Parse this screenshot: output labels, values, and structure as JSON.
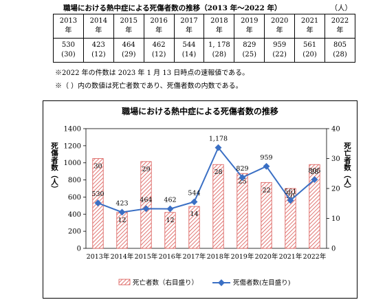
{
  "table": {
    "title": "職場における熱中症による死傷者数の推移（2013 年〜2022 年）",
    "unit": "（人）",
    "years": [
      {
        "y": "2013",
        "s": "年"
      },
      {
        "y": "2014",
        "s": "年"
      },
      {
        "y": "2015",
        "s": "年"
      },
      {
        "y": "2016",
        "s": "年"
      },
      {
        "y": "2017",
        "s": "年"
      },
      {
        "y": "2018",
        "s": "年"
      },
      {
        "y": "2019",
        "s": "年"
      },
      {
        "y": "2020",
        "s": "年"
      },
      {
        "y": "2021",
        "s": "年"
      },
      {
        "y": "2022",
        "s": "年"
      }
    ],
    "values": [
      {
        "casualties": "530",
        "deaths": "(30)"
      },
      {
        "casualties": "423",
        "deaths": "(12)"
      },
      {
        "casualties": "464",
        "deaths": "(29)"
      },
      {
        "casualties": "462",
        "deaths": "(12)"
      },
      {
        "casualties": "544",
        "deaths": "(14)"
      },
      {
        "casualties": "1, 178",
        "deaths": "(28)"
      },
      {
        "casualties": "829",
        "deaths": "(25)"
      },
      {
        "casualties": "959",
        "deaths": "(22)"
      },
      {
        "casualties": "561",
        "deaths": "(20)"
      },
      {
        "casualties": "805",
        "deaths": "(28)"
      }
    ]
  },
  "notes": [
    "※2022 年の件数は 2023 年 1 月 13 日時点の速報値である。",
    "※（ ）内の数値は死亡者数であり、死傷者数の内数である。"
  ],
  "chart_data": {
    "type": "bar",
    "title": "職場における熱中症による死傷者数の推移",
    "categories": [
      "2013年",
      "2014年",
      "2015年",
      "2016年",
      "2017年",
      "2018年",
      "2019年",
      "2020年",
      "2021年",
      "2022年"
    ],
    "series": [
      {
        "name": "死亡者数（右目盛り）",
        "type": "bar",
        "axis": "right",
        "values": [
          30,
          12,
          29,
          12,
          14,
          28,
          25,
          22,
          20,
          28
        ],
        "labels": [
          "30",
          "12",
          "29",
          "12",
          "14",
          "28",
          "25",
          "22",
          "20",
          "28"
        ],
        "color": "#d9534f"
      },
      {
        "name": "死傷者数(左目盛り)",
        "type": "line",
        "axis": "left",
        "values": [
          530,
          423,
          464,
          462,
          544,
          1178,
          829,
          959,
          561,
          805
        ],
        "labels": [
          "530",
          "423",
          "464",
          "462",
          "544",
          "1,178",
          "829",
          "959",
          "561",
          "805"
        ],
        "color": "#3a6fc4"
      }
    ],
    "y_left": {
      "label": "死傷者数（人）",
      "range": [
        0,
        1400
      ],
      "ticks": [
        "0",
        "200",
        "400",
        "600",
        "800",
        "1000",
        "1200",
        "1400"
      ]
    },
    "y_right": {
      "label": "死亡者数（人）",
      "range": [
        0,
        40
      ],
      "ticks": [
        "0",
        "10",
        "20",
        "30",
        "40"
      ]
    },
    "legend_position": "bottom",
    "grid": false
  }
}
